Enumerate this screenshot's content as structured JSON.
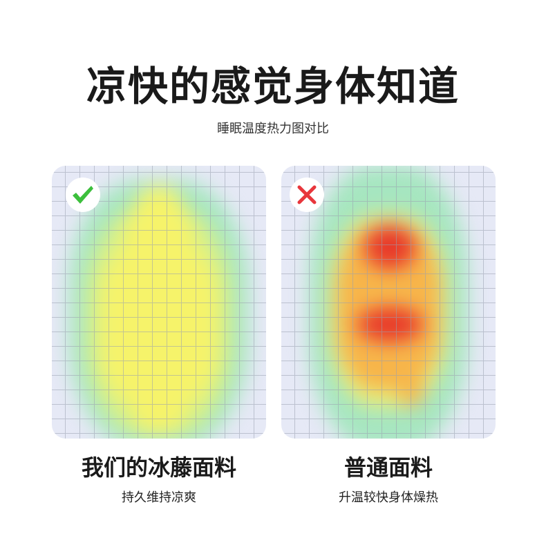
{
  "header": {
    "title": "凉快的感觉身体知道",
    "subtitle": "睡眠温度热力图对比"
  },
  "left": {
    "label": "我们的冰藤面料",
    "desc": "持久维持凉爽",
    "icon": "check-icon",
    "icon_color": "#3cbf3c"
  },
  "right": {
    "label": "普通面料",
    "desc": "升温较快身体燥热",
    "icon": "cross-icon",
    "icon_color": "#e8363c"
  },
  "colors": {
    "cool": "#e6e9f6",
    "green": "#9ee3b8",
    "yellow": "#f7f36a",
    "orange": "#f7b54a",
    "red": "#e83a2a"
  }
}
